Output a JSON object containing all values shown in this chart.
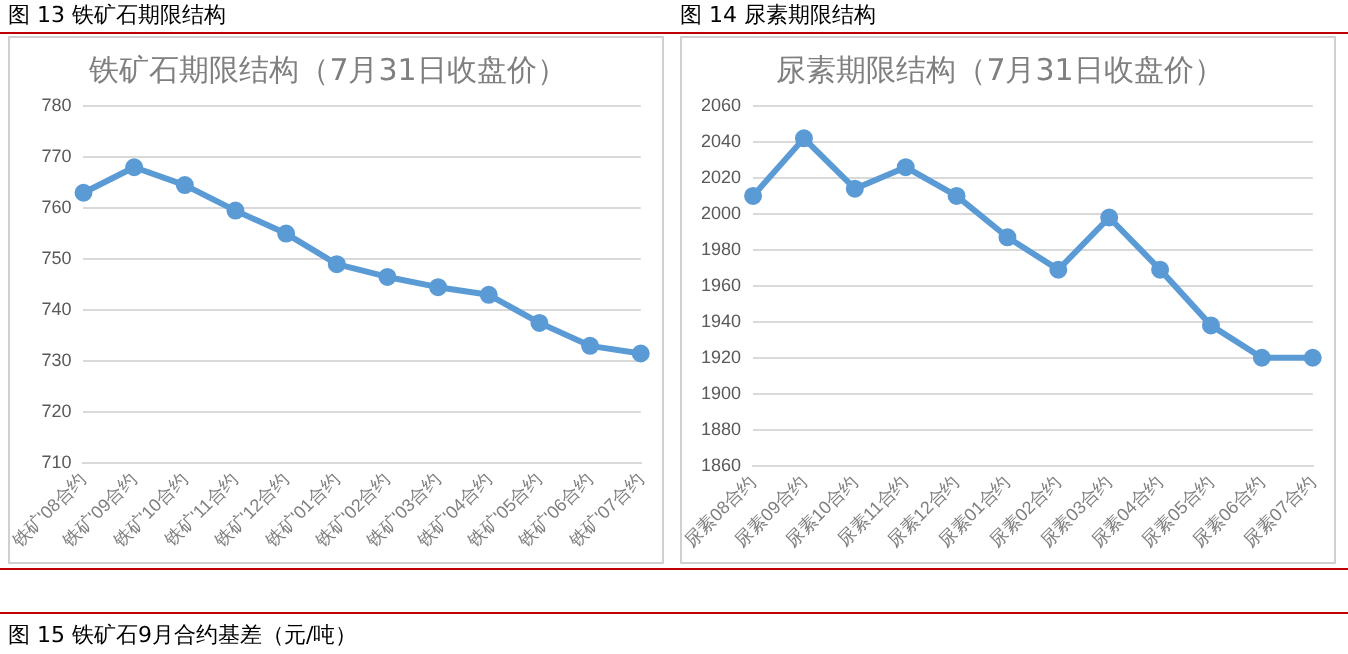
{
  "chart_data": [
    {
      "type": "line",
      "subtitle": "图 13 铁矿石期限结构",
      "title": "铁矿石期限结构（7月31日收盘价）",
      "categories": [
        "铁矿'08合约",
        "铁矿'09合约",
        "铁矿'10合约",
        "铁矿'11合约",
        "铁矿'12合约",
        "铁矿'01合约",
        "铁矿'02合约",
        "铁矿'03合约",
        "铁矿'04合约",
        "铁矿'05合约",
        "铁矿'06合约",
        "铁矿'07合约"
      ],
      "series": [
        {
          "color": "#5b9bd5",
          "values": [
            763,
            768,
            764.5,
            759.5,
            755,
            749,
            746.5,
            744.5,
            743,
            737.5,
            733,
            731.5
          ]
        }
      ],
      "ylim": [
        710,
        780
      ],
      "yticks": [
        710,
        720,
        730,
        740,
        750,
        760,
        770,
        780
      ],
      "grid": "y",
      "legend": false,
      "marker": "circle"
    },
    {
      "type": "line",
      "subtitle": "图 14 尿素期限结构",
      "title": "尿素期限结构（7月31日收盘价）",
      "categories": [
        "尿素08合约",
        "尿素09合约",
        "尿素10合约",
        "尿素11合约",
        "尿素12合约",
        "尿素01合约",
        "尿素02合约",
        "尿素03合约",
        "尿素04合约",
        "尿素05合约",
        "尿素06合约",
        "尿素07合约"
      ],
      "series": [
        {
          "color": "#5b9bd5",
          "values": [
            2010,
            2042,
            2014,
            2026,
            2010,
            1987,
            1969,
            1998,
            1969,
            1938,
            1920,
            1920
          ]
        }
      ],
      "ylim": [
        1860,
        2060
      ],
      "yticks": [
        1860,
        1880,
        1900,
        1920,
        1940,
        1960,
        1980,
        2000,
        2020,
        2040,
        2060
      ],
      "grid": "y",
      "legend": false,
      "marker": "circle",
      "annotations": [
        "图 15 铁矿石9月合约基差（元/吨）"
      ]
    }
  ]
}
